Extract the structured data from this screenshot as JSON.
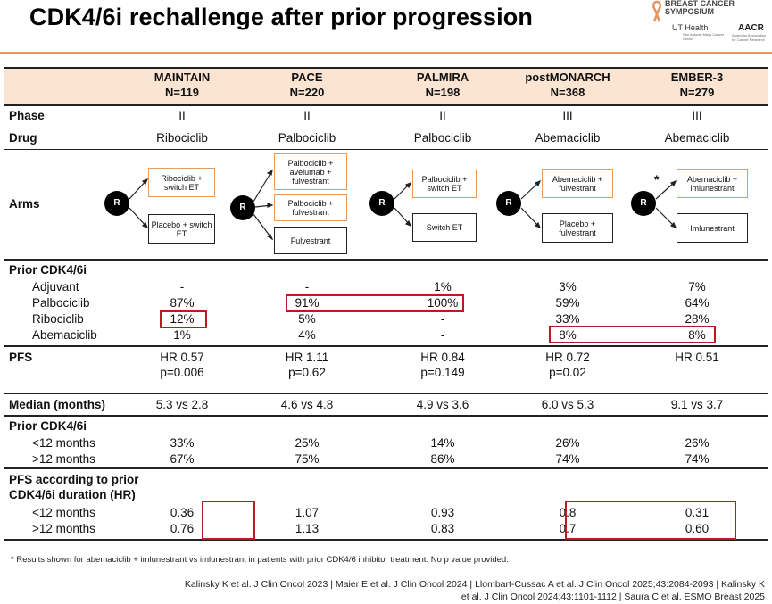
{
  "title": "CDK4/6i rechallenge after prior progression",
  "logos": {
    "sabcs": "BREAST CANCER SYMPOSIUM",
    "ut_health": "UT Health",
    "ut_sub": "San Antonio Mays Cancer Center",
    "aacr": "AACR",
    "aacr_sub": "American Association for Cancer Research"
  },
  "trials": [
    {
      "name": "MAINTAIN",
      "n": "N=119"
    },
    {
      "name": "PACE",
      "n": "N=220"
    },
    {
      "name": "PALMIRA",
      "n": "N=198"
    },
    {
      "name": "postMONARCH",
      "n": "N=368"
    },
    {
      "name": "EMBER-3",
      "n": "N=279"
    }
  ],
  "rows": {
    "phase": {
      "label": "Phase",
      "values": [
        "II",
        "II",
        "II",
        "III",
        "III"
      ]
    },
    "drug": {
      "label": "Drug",
      "values": [
        "Ribociclib",
        "Palbociclib",
        "Palbociclib",
        "Abemaciclib",
        "Abemaciclib"
      ]
    },
    "arms": {
      "label": "Arms"
    },
    "prior": {
      "label": "Prior CDK4/6i",
      "items": [
        {
          "label": "Adjuvant",
          "values": [
            "-",
            "-",
            "1%",
            "3%",
            "7%"
          ]
        },
        {
          "label": "Palbociclib",
          "values": [
            "87%",
            "91%",
            "100%",
            "59%",
            "64%"
          ]
        },
        {
          "label": "Ribociclib",
          "values": [
            "12%",
            "5%",
            "-",
            "33%",
            "28%"
          ]
        },
        {
          "label": "Abemaciclib",
          "values": [
            "1%",
            "4%",
            "-",
            "8%",
            "8%"
          ]
        }
      ]
    },
    "pfs": {
      "label": "PFS",
      "hr": [
        "HR 0.57",
        "HR 1.11",
        "HR 0.84",
        "HR 0.72",
        "HR 0.51"
      ],
      "p": [
        "p=0.006",
        "p=0.62",
        "p=0.149",
        "p=0.02",
        ""
      ]
    },
    "median": {
      "label": "Median (months)",
      "values": [
        "5.3 vs 2.8",
        "4.6 vs 4.8",
        "4.9 vs 3.6",
        "6.0 vs 5.3",
        "9.1 vs 3.7"
      ]
    },
    "duration": {
      "label": "Prior CDK4/6i",
      "items": [
        {
          "label": "<12 months",
          "values": [
            "33%",
            "25%",
            "14%",
            "26%",
            "26%"
          ]
        },
        {
          "label": ">12 months",
          "values": [
            "67%",
            "75%",
            "86%",
            "74%",
            "74%"
          ]
        }
      ]
    },
    "pfs_duration": {
      "label_line1": "PFS according to prior",
      "label_line2": "CDK4/6i duration (HR)",
      "items": [
        {
          "label": "<12 months",
          "values": [
            "0.36",
            "1.07",
            "0.93",
            "0.8",
            "0.31"
          ]
        },
        {
          "label": ">12 months",
          "values": [
            "0.76",
            "1.13",
            "0.83",
            "0.7",
            "0.60"
          ]
        }
      ]
    }
  },
  "diagram": {
    "r_label": "R",
    "maintain_arms": [
      "Ribociclib + switch ET",
      "Placebo + switch ET"
    ],
    "pace_arms": [
      "Palbociclib + avelumab + fulvestrant",
      "Palbociclib + fulvestrant",
      "Fulvestrant"
    ],
    "palmira_arms": [
      "Palbociclib + switch ET",
      "Switch ET"
    ],
    "postmonarch_arms": [
      "Abemaciclib + fulvestrant",
      "Placebo + fulvestrant"
    ],
    "ember_arms": [
      "Abemaciclib + imlunestrant",
      "Imlunestrant"
    ],
    "star": "*"
  },
  "footnote": "* Results shown for abemaciclib + imlunestrant vs imlunestrant in patients with prior CDK4/6 inhibitor treatment. No p value provided.",
  "references_line1": "Kalinsky K et al. J Clin Oncol 2023 | Maier E et al. J Clin Oncol 2024 | Llombart-Cussac A et al. J Clin Oncol 2025;43:2084-2093 | Kalinsky K",
  "references_line2": "et al. J Clin Oncol 2024;43:1101-1112 | Saura C et al. ESMO Breast 2025",
  "colors": {
    "accent": "#e8955c",
    "header_bg": "#fbe5d2",
    "highlight": "#b81c22"
  }
}
